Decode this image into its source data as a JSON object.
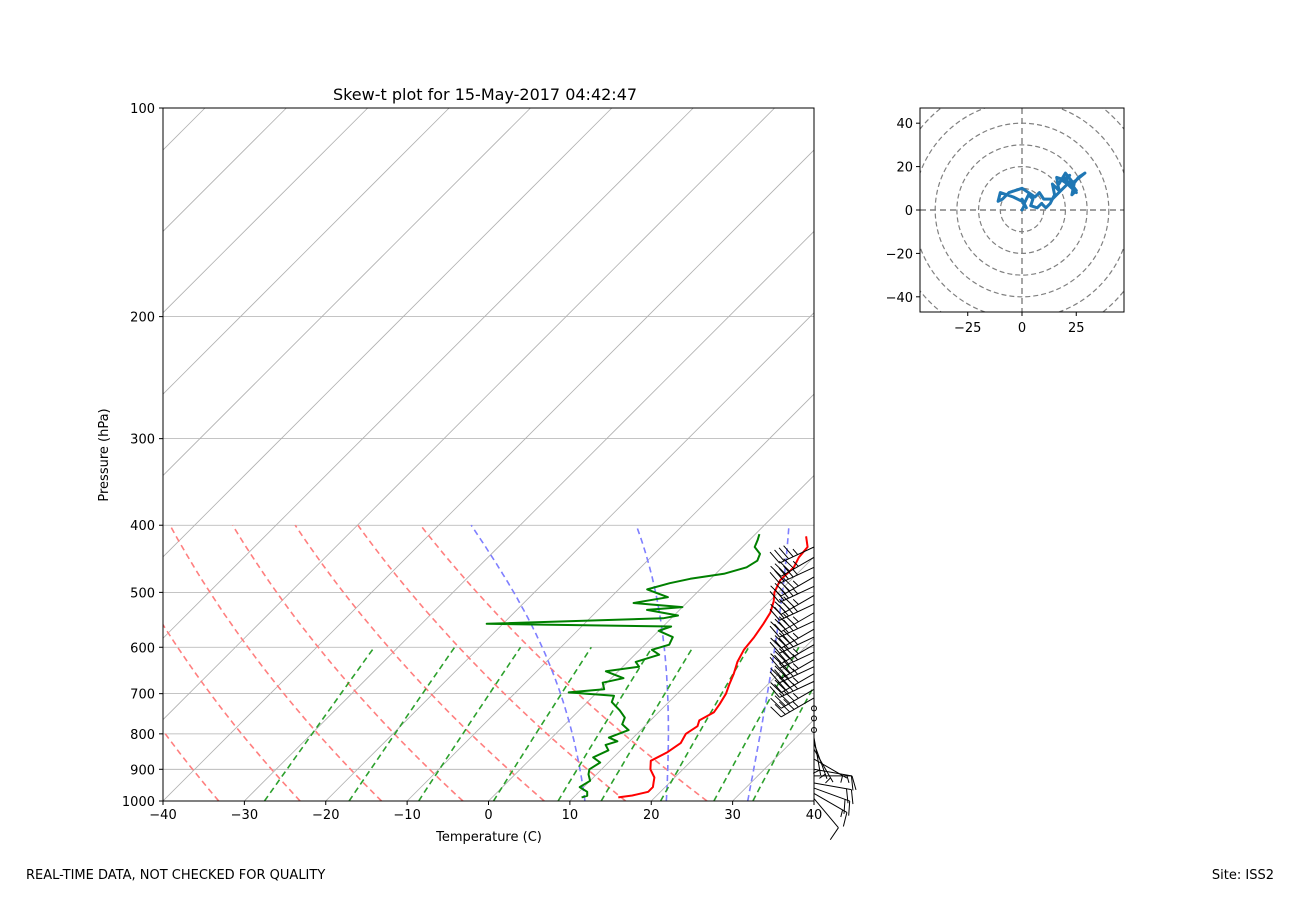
{
  "footer": {
    "quality_note": "REAL-TIME DATA, NOT CHECKED FOR QUALITY",
    "site": "Site: ISS2"
  },
  "colors": {
    "temperature": "#ff0000",
    "dewpoint": "#008000",
    "dry_adiabat": "#ff7f7f",
    "moist_adiabat": "#7f7fff",
    "mixing_ratio": "#2ca02c",
    "hodograph": "#1f77b4",
    "grid": "#b0b0b0"
  },
  "chart_data": [
    {
      "type": "line",
      "name": "skewt",
      "title": "Skew-t plot for 15-May-2017 04:42:47",
      "xlabel": "Temperature (C)",
      "ylabel": "Pressure (hPa)",
      "xlim": [
        -40,
        40
      ],
      "ylim": [
        1000,
        100
      ],
      "xticks": [
        -40,
        -30,
        -20,
        -10,
        0,
        10,
        20,
        30,
        40
      ],
      "yticks": [
        100,
        200,
        300,
        400,
        500,
        600,
        700,
        800,
        900,
        1000
      ],
      "grid": true,
      "isotherms": [
        -150,
        -140,
        -130,
        -120,
        -110,
        -100,
        -90,
        -80,
        -70,
        -60,
        -50,
        -40,
        -30,
        -20,
        -10,
        0,
        10,
        20,
        30,
        40
      ],
      "dry_adiabats_theta_K": [
        300,
        290,
        280,
        270,
        260,
        250,
        240,
        230,
        220
      ],
      "moist_adiabats_theta_K": [
        285,
        295,
        305,
        315,
        325
      ],
      "mixing_ratios_gkg": [
        0.4,
        1,
        2,
        4,
        7,
        10,
        16,
        24,
        32
      ],
      "series": [
        {
          "name": "Temperature",
          "pressure": [
            988,
            982,
            970,
            955,
            940,
            925,
            900,
            875,
            850,
            825,
            800,
            780,
            765,
            745,
            725,
            700,
            680,
            655,
            630,
            605,
            580,
            555,
            535,
            515,
            500,
            480,
            460,
            445,
            430,
            415
          ],
          "values": [
            15.5,
            17.0,
            18.5,
            18.5,
            18.0,
            17.5,
            16.0,
            15.0,
            16.0,
            16.5,
            16.0,
            16.5,
            16.0,
            16.8,
            16.5,
            16.0,
            15.3,
            14.5,
            13.5,
            12.8,
            12.5,
            12.0,
            11.5,
            10.5,
            9.5,
            8.7,
            8.8,
            8.2,
            8.0,
            6.5
          ]
        },
        {
          "name": "Dewpoint",
          "pressure": [
            988,
            983,
            970,
            955,
            935,
            915,
            900,
            880,
            865,
            845,
            830,
            820,
            810,
            790,
            775,
            758,
            740,
            720,
            705,
            697,
            690,
            675,
            665,
            650,
            640,
            630,
            615,
            605,
            595,
            580,
            568,
            560,
            555,
            545,
            540,
            530,
            525,
            518,
            508,
            495,
            485,
            478,
            470,
            460,
            450,
            440,
            430,
            420,
            412
          ],
          "values": [
            11.0,
            11.5,
            11.0,
            9.5,
            10.0,
            9.0,
            8.5,
            9.0,
            7.5,
            8.5,
            7.5,
            8.5,
            7.0,
            8.5,
            7.0,
            6.5,
            5.0,
            3.0,
            2.5,
            -3.5,
            0.5,
            -0.5,
            1.5,
            -1.5,
            2.0,
            1.0,
            3.0,
            1.5,
            3.0,
            2.5,
            0.0,
            1.0,
            -22.0,
            -1.0,
            0.5,
            -4.0,
            0.0,
            -6.5,
            -3.0,
            -6.5,
            -4.5,
            -2.5,
            1.0,
            3.0,
            3.5,
            3.0,
            1.5,
            1.0,
            0.5
          ]
        }
      ],
      "wind_barbs": {
        "pressure": [
          992,
          975,
          958,
          942,
          920,
          900,
          870,
          842,
          825,
          810,
          790,
          760,
          735,
          710,
          690,
          672,
          655,
          640,
          625,
          610,
          595,
          580,
          565,
          550,
          535,
          520,
          505,
          490,
          475,
          460,
          445,
          430
        ],
        "speed_kt": [
          10,
          15,
          20,
          20,
          15,
          10,
          5,
          5,
          5,
          5,
          0,
          0,
          0,
          45,
          45,
          45,
          45,
          45,
          45,
          45,
          45,
          45,
          45,
          45,
          45,
          45,
          45,
          45,
          45,
          45,
          45,
          45
        ],
        "direction_deg": [
          140,
          120,
          110,
          100,
          90,
          100,
          120,
          150,
          160,
          170,
          0,
          0,
          0,
          240,
          240,
          245,
          240,
          245,
          240,
          245,
          240,
          245,
          240,
          245,
          240,
          245,
          240,
          245,
          240,
          245,
          240,
          245
        ]
      }
    },
    {
      "type": "line",
      "name": "hodograph",
      "xlim": [
        -47,
        47
      ],
      "ylim": [
        -47,
        47
      ],
      "xticks": [
        -25,
        0,
        25
      ],
      "yticks": [
        -40,
        -20,
        0,
        20,
        40
      ],
      "ring_radii": [
        10,
        20,
        30,
        40,
        50,
        60
      ],
      "u": [
        0,
        1,
        0,
        2,
        1,
        3,
        5,
        4,
        7,
        9,
        11,
        13,
        15,
        14,
        17,
        16,
        19,
        22,
        20,
        24,
        29,
        26,
        23,
        25,
        21,
        18,
        17,
        20,
        24,
        23,
        25,
        22,
        14,
        10,
        8,
        6,
        0,
        -6,
        -9,
        -11,
        -10,
        -4,
        0
      ],
      "v": [
        0,
        2,
        5,
        1,
        3,
        7,
        5,
        2,
        1,
        3,
        1,
        3,
        7,
        12,
        9,
        15,
        14,
        16,
        13,
        13,
        17,
        15,
        11,
        8,
        12,
        14,
        12,
        17,
        12,
        7,
        9,
        13,
        5,
        5,
        8,
        6,
        10,
        8,
        5,
        4,
        8,
        6,
        4
      ]
    }
  ]
}
